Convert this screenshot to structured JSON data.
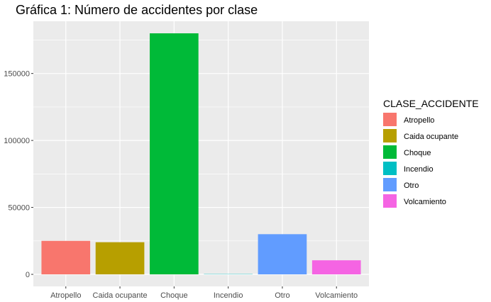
{
  "chart_data": {
    "type": "bar",
    "title": "Gráfica 1: Número de accidentes por clase",
    "xlabel": "",
    "ylabel": "",
    "categories": [
      "Atropello",
      "Caida ocupante",
      "Choque",
      "Incendio",
      "Otro",
      "Volcamiento"
    ],
    "values": [
      25000,
      24000,
      180000,
      200,
      30000,
      10500
    ],
    "colors": [
      "#F8766D",
      "#B79F00",
      "#00BA38",
      "#00BFC4",
      "#619CFF",
      "#F564E3"
    ],
    "ylim": [
      -9000,
      189000
    ],
    "yticks": [
      0,
      50000,
      100000,
      150000
    ],
    "ytick_labels": [
      "0",
      "50000",
      "100000",
      "150000"
    ],
    "grid": true,
    "legend": {
      "title": "CLASE_ACCIDENTE",
      "position": "right",
      "entries": [
        "Atropello",
        "Caida ocupante",
        "Choque",
        "Incendio",
        "Otro",
        "Volcamiento"
      ]
    },
    "panel_background": "#EBEBEB",
    "grid_color": "#FFFFFF"
  }
}
